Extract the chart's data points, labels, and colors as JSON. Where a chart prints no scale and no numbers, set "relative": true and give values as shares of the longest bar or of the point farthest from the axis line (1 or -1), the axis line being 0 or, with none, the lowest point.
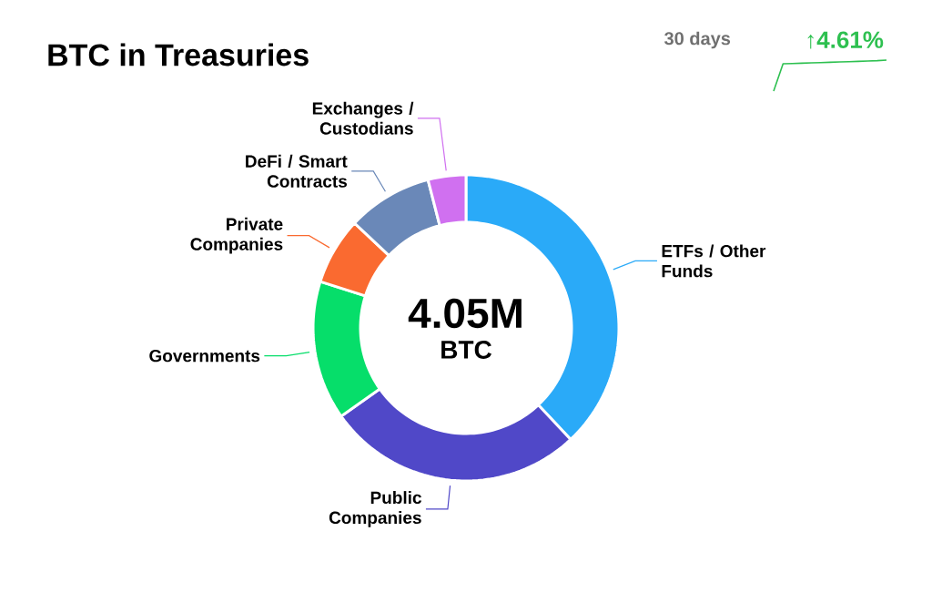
{
  "chart_data": [
    {
      "type": "donut",
      "title": "BTC in Treasuries",
      "categories": [
        "ETFs / Other Funds",
        "Public Companies",
        "Governments",
        "Private Companies",
        "DeFi / Smart Contracts",
        "Exchanges / Custodians"
      ],
      "values": [
        38,
        27.2,
        14.7,
        7.1,
        9,
        4
      ],
      "colors": [
        "#2aaaf8",
        "#5048c8",
        "#06de6a",
        "#fa6a30",
        "#6a88b8",
        "#d070f0"
      ],
      "annotations": [
        "4.05M",
        "BTC"
      ]
    },
    {
      "type": "line",
      "title": "30 days",
      "categories": [
        null,
        null,
        null,
        null,
        null,
        null,
        null,
        null,
        null,
        null,
        null,
        null,
        null
      ],
      "series": [
        {
          "color": "#2ec050",
          "values": [
            0,
            0.88,
            0.89,
            0.9,
            0.91,
            0.92,
            0.93,
            0.94,
            0.95,
            0.96,
            0.97,
            0.98,
            1
          ]
        }
      ],
      "relative": true,
      "annotations": [
        "↑4.61%"
      ]
    }
  ]
}
